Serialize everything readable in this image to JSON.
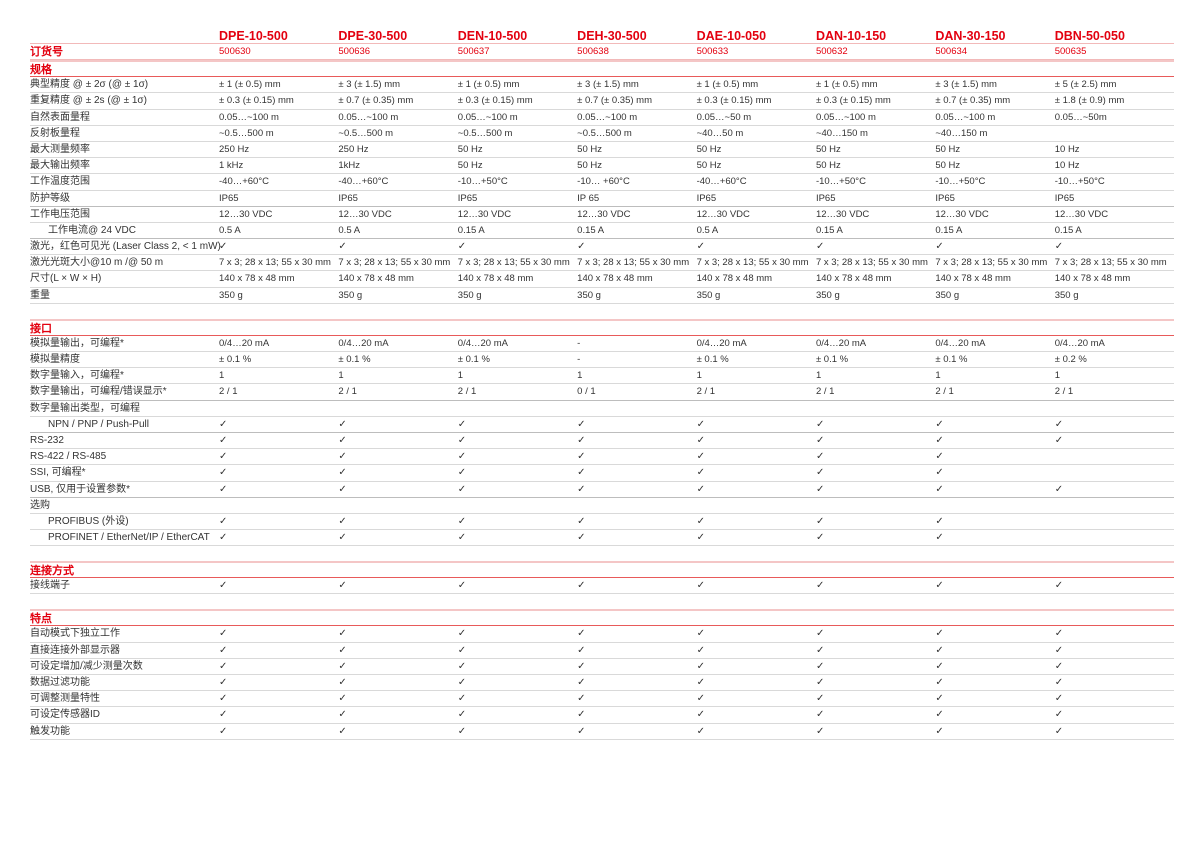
{
  "models": [
    "DPE-10-500",
    "DPE-30-500",
    "DEN-10-500",
    "DEH-30-500",
    "DAE-10-050",
    "DAN-10-150",
    "DAN-30-150",
    "DBN-50-050"
  ],
  "order": {
    "label": "订货号",
    "values": [
      "500630",
      "500636",
      "500637",
      "500638",
      "500633",
      "500632",
      "500634",
      "500635"
    ]
  },
  "colors": {
    "accent": "#e3000f",
    "rule": "#d9d9d9"
  },
  "sections": [
    {
      "title": "规格",
      "rows": [
        {
          "label": "典型精度 @ ± 2σ (@ ± 1σ)",
          "values": [
            "± 1 (± 0.5) mm",
            "± 3 (± 1.5) mm",
            "± 1 (± 0.5) mm",
            "± 3 (± 1.5) mm",
            "± 1 (± 0.5) mm",
            "± 1 (± 0.5) mm",
            "± 3 (± 1.5) mm",
            "± 5 (± 2.5) mm"
          ]
        },
        {
          "label": "重复精度 @ ± 2s (@ ± 1σ)",
          "values": [
            "± 0.3 (± 0.15) mm",
            "± 0.7 (± 0.35) mm",
            "± 0.3 (± 0.15) mm",
            "± 0.7 (± 0.35) mm",
            "± 0.3 (± 0.15) mm",
            "± 0.3 (± 0.15) mm",
            "± 0.7 (± 0.35) mm",
            "± 1.8 (± 0.9) mm"
          ]
        },
        {
          "label": "自然表面量程",
          "values": [
            "0.05…~100 m",
            "0.05…~100 m",
            "0.05…~100 m",
            "0.05…~100 m",
            "0.05…~50 m",
            "0.05…~100 m",
            "0.05…~100 m",
            "0.05…~50m"
          ]
        },
        {
          "label": "反射板量程",
          "values": [
            " ~0.5…500 m",
            " ~0.5…500 m",
            " ~0.5…500 m",
            " ~0.5…500 m",
            "~40…50 m",
            "~40…150 m",
            "~40…150 m",
            ""
          ]
        },
        {
          "label": "最大测量频率",
          "values": [
            "250 Hz",
            "250 Hz",
            "50 Hz",
            "50 Hz",
            "50 Hz",
            "50 Hz",
            "50 Hz",
            "10 Hz"
          ]
        },
        {
          "label": "最大输出频率",
          "values": [
            "1 kHz",
            "1kHz",
            "50 Hz",
            "50 Hz",
            "50 Hz",
            "50 Hz",
            "50 Hz",
            "10 Hz"
          ]
        },
        {
          "label": "工作温度范围",
          "values": [
            "-40…+60°C",
            "-40…+60°C",
            "-10…+50°C",
            "-10… +60°C",
            "-40…+60°C",
            "-10…+50°C",
            "-10…+50°C",
            "-10…+50°C"
          ]
        },
        {
          "label": "防护等级",
          "values": [
            "IP65",
            "IP65",
            "IP65",
            "IP 65",
            "IP65",
            "IP65",
            "IP65",
            "IP65"
          ],
          "thick": true
        },
        {
          "label": "工作电压范围",
          "values": [
            "12…30 VDC",
            "12…30 VDC",
            "12…30 VDC",
            "12…30 VDC",
            "12…30 VDC",
            "12…30 VDC",
            "12…30 VDC",
            "12…30 VDC"
          ]
        },
        {
          "label": "工作电流@ 24 VDC",
          "indent": true,
          "values": [
            "0.5 A",
            "0.5 A",
            "0.15 A",
            "0.15 A",
            "0.5 A",
            "0.15 A",
            "0.15 A",
            "0.15 A"
          ],
          "thick": true
        },
        {
          "label": "激光，红色可见光 (Laser Class 2, < 1 mW)",
          "values": [
            "✓",
            "✓",
            "✓",
            "✓",
            "✓",
            "✓",
            "✓",
            "✓"
          ]
        },
        {
          "label": "激光光斑大小@10 m /@ 50 m",
          "values": [
            "7 x 3; 28 x 13; 55 x 30 mm",
            "7 x 3; 28 x 13; 55 x 30 mm",
            "7 x 3; 28 x 13; 55 x 30 mm",
            "7 x 3; 28 x 13; 55 x 30 mm",
            "7 x 3; 28 x 13; 55 x 30 mm",
            "7 x 3; 28 x 13; 55 x 30 mm",
            "7 x 3; 28 x 13; 55 x 30 mm",
            "7 x 3; 28 x 13; 55 x 30 mm"
          ]
        },
        {
          "label": "尺寸(L × W × H)",
          "values": [
            "140 x 78 x 48 mm",
            "140 x 78 x 48 mm",
            "140 x 78 x 48 mm",
            "140 x 78 x 48 mm",
            "140 x 78 x 48 mm",
            "140 x 78 x 48 mm",
            "140 x 78 x 48 mm",
            "140 x 78 x 48 mm"
          ]
        },
        {
          "label": "重量",
          "values": [
            "350 g",
            "350 g",
            "350 g",
            "350 g",
            "350 g",
            "350 g",
            "350 g",
            "350 g"
          ]
        }
      ]
    },
    {
      "title": "接口",
      "rows": [
        {
          "label": "模拟量输出，可编程*",
          "values": [
            "0/4…20 mA",
            "0/4…20 mA",
            "0/4…20 mA",
            "-",
            "0/4…20 mA",
            "0/4…20 mA",
            "0/4…20 mA",
            "0/4…20 mA"
          ]
        },
        {
          "label": "模拟量精度",
          "values": [
            "± 0.1 %",
            "± 0.1 %",
            "± 0.1 %",
            "-",
            "± 0.1 %",
            "± 0.1 %",
            "± 0.1 %",
            "± 0.2 %"
          ]
        },
        {
          "label": "数字量输入，可编程*",
          "values": [
            "1",
            "1",
            "1",
            "1",
            "1",
            "1",
            "1",
            "1"
          ]
        },
        {
          "label": "数字量输出，可编程/错误显示*",
          "values": [
            "2 / 1",
            "2 / 1",
            "2 / 1",
            "0 / 1",
            "2 / 1",
            "2 / 1",
            "2 / 1",
            "2 / 1"
          ],
          "thick": true
        },
        {
          "label": "数字量输出类型，可编程",
          "values": [
            "",
            "",
            "",
            "",
            "",
            "",
            "",
            ""
          ]
        },
        {
          "label": "NPN / PNP / Push-Pull",
          "indent": true,
          "values": [
            "✓",
            "✓",
            "✓",
            "✓",
            "✓",
            "✓",
            "✓",
            "✓"
          ],
          "thick": true
        },
        {
          "label": "RS-232",
          "values": [
            "✓",
            "✓",
            "✓",
            "✓",
            "✓",
            "✓",
            "✓",
            "✓"
          ]
        },
        {
          "label": "RS-422 / RS-485",
          "values": [
            "✓",
            "✓",
            "✓",
            "✓",
            "✓",
            "✓",
            "✓",
            ""
          ]
        },
        {
          "label": "SSI, 可编程*",
          "values": [
            "✓",
            "✓",
            "✓",
            "✓",
            "✓",
            "✓",
            "✓",
            ""
          ]
        },
        {
          "label": "USB, 仅用于设置参数*",
          "values": [
            "✓",
            "✓",
            "✓",
            "✓",
            "✓",
            "✓",
            "✓",
            "✓"
          ],
          "thick": true
        },
        {
          "label": "选购",
          "values": [
            "",
            "",
            "",
            "",
            "",
            "",
            "",
            ""
          ]
        },
        {
          "label": "PROFIBUS (外设)",
          "indent": true,
          "values": [
            "✓",
            "✓",
            "✓",
            "✓",
            "✓",
            "✓",
            "✓",
            ""
          ]
        },
        {
          "label": "PROFINET / EtherNet/IP / EtherCAT",
          "indent": true,
          "values": [
            "✓",
            "✓",
            "✓",
            "✓",
            "✓",
            "✓",
            "✓",
            ""
          ]
        }
      ]
    },
    {
      "title": "连接方式",
      "rows": [
        {
          "label": "接线端子",
          "values": [
            "✓",
            "✓",
            "✓",
            "✓",
            "✓",
            "✓",
            "✓",
            "✓"
          ]
        }
      ]
    },
    {
      "title": "特点",
      "rows": [
        {
          "label": "自动模式下独立工作",
          "values": [
            "✓",
            "✓",
            "✓",
            "✓",
            "✓",
            "✓",
            "✓",
            "✓"
          ]
        },
        {
          "label": "直接连接外部显示器",
          "values": [
            "✓",
            "✓",
            "✓",
            "✓",
            "✓",
            "✓",
            "✓",
            "✓"
          ]
        },
        {
          "label": "可设定增加/减少测量次数",
          "values": [
            "✓",
            "✓",
            "✓",
            "✓",
            "✓",
            "✓",
            "✓",
            "✓"
          ]
        },
        {
          "label": "数据过滤功能",
          "values": [
            "✓",
            "✓",
            "✓",
            "✓",
            "✓",
            "✓",
            "✓",
            "✓"
          ]
        },
        {
          "label": "可调整测量特性",
          "values": [
            "✓",
            "✓",
            "✓",
            "✓",
            "✓",
            "✓",
            "✓",
            "✓"
          ]
        },
        {
          "label": "可设定传感器ID",
          "values": [
            "✓",
            "✓",
            "✓",
            "✓",
            "✓",
            "✓",
            "✓",
            "✓"
          ]
        },
        {
          "label": "触发功能",
          "values": [
            "✓",
            "✓",
            "✓",
            "✓",
            "✓",
            "✓",
            "✓",
            "✓"
          ]
        }
      ]
    }
  ]
}
